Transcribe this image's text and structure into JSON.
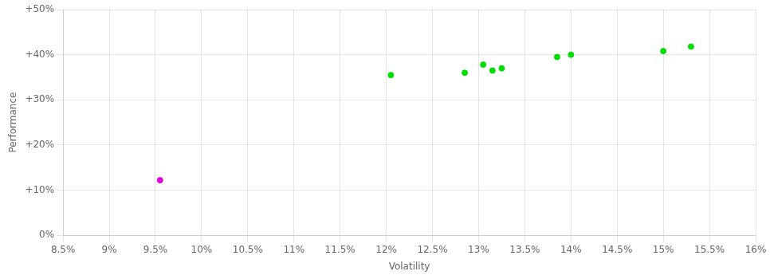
{
  "chart_data": {
    "type": "scatter",
    "xlabel": "Volatility",
    "ylabel": "Performance",
    "xlim": [
      0.085,
      0.16
    ],
    "ylim": [
      0.0,
      0.5
    ],
    "xticks": [
      {
        "value": 0.085,
        "label": "8.5%"
      },
      {
        "value": 0.09,
        "label": "9%"
      },
      {
        "value": 0.095,
        "label": "9.5%"
      },
      {
        "value": 0.1,
        "label": "10%"
      },
      {
        "value": 0.105,
        "label": "10.5%"
      },
      {
        "value": 0.11,
        "label": "11%"
      },
      {
        "value": 0.115,
        "label": "11.5%"
      },
      {
        "value": 0.12,
        "label": "12%"
      },
      {
        "value": 0.125,
        "label": "12.5%"
      },
      {
        "value": 0.13,
        "label": "13%"
      },
      {
        "value": 0.135,
        "label": "13.5%"
      },
      {
        "value": 0.14,
        "label": "14%"
      },
      {
        "value": 0.145,
        "label": "14.5%"
      },
      {
        "value": 0.15,
        "label": "15%"
      },
      {
        "value": 0.155,
        "label": "15.5%"
      },
      {
        "value": 0.16,
        "label": "16%"
      }
    ],
    "yticks": [
      {
        "value": 0.0,
        "label": "0%"
      },
      {
        "value": 0.1,
        "label": "+10%"
      },
      {
        "value": 0.2,
        "label": "+20%"
      },
      {
        "value": 0.3,
        "label": "+30%"
      },
      {
        "value": 0.4,
        "label": "+40%"
      },
      {
        "value": 0.5,
        "label": "+50%"
      }
    ],
    "grid": true,
    "series": [
      {
        "color": "#00dd00",
        "x": [
          0.1205,
          0.1285,
          0.1305,
          0.1315,
          0.1325,
          0.1385,
          0.14,
          0.15,
          0.153
        ],
        "values": [
          0.355,
          0.36,
          0.378,
          0.365,
          0.37,
          0.395,
          0.4,
          0.408,
          0.418
        ]
      },
      {
        "color": "#dd00dd",
        "x": [
          0.0955
        ],
        "values": [
          0.122
        ]
      }
    ]
  }
}
